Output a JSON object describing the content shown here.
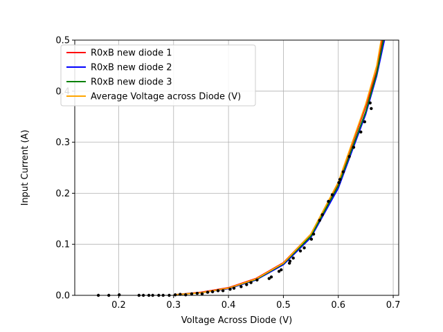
{
  "chart_data": {
    "type": "line",
    "title": "",
    "xlabel": "Voltage Across Diode (V)",
    "ylabel": "Input Current (A)",
    "xlim": [
      0.12,
      0.71
    ],
    "ylim": [
      0,
      0.5
    ],
    "xticks": [
      0.2,
      0.3,
      0.4,
      0.5,
      0.6,
      0.7
    ],
    "yticks": [
      0.0,
      0.1,
      0.2,
      0.3,
      0.4,
      0.5
    ],
    "grid": true,
    "legend_position": "top-left",
    "series": [
      {
        "name": "R0xB new diode 1",
        "color": "#ff0000",
        "x": [
          0.3,
          0.35,
          0.4,
          0.45,
          0.5,
          0.55,
          0.6,
          0.65,
          0.67,
          0.68
        ],
        "y": [
          0.001,
          0.006,
          0.015,
          0.033,
          0.064,
          0.12,
          0.22,
          0.37,
          0.44,
          0.5
        ]
      },
      {
        "name": "R0xB new diode 2",
        "color": "#0000ff",
        "x": [
          0.3,
          0.35,
          0.4,
          0.45,
          0.5,
          0.55,
          0.6,
          0.65,
          0.67,
          0.684
        ],
        "y": [
          0.001,
          0.005,
          0.013,
          0.03,
          0.06,
          0.113,
          0.21,
          0.355,
          0.43,
          0.5
        ]
      },
      {
        "name": "R0xB new diode 3",
        "color": "#008000",
        "x": [
          0.3,
          0.35,
          0.4,
          0.45,
          0.5,
          0.55,
          0.6,
          0.65,
          0.67,
          0.682
        ],
        "y": [
          0.001,
          0.005,
          0.014,
          0.031,
          0.062,
          0.116,
          0.215,
          0.36,
          0.435,
          0.5
        ]
      },
      {
        "name": "Average Voltage across Diode (V)",
        "color": "#ffa500",
        "x": [
          0.3,
          0.35,
          0.4,
          0.45,
          0.5,
          0.55,
          0.6,
          0.65,
          0.67,
          0.678
        ],
        "y": [
          0.001,
          0.005,
          0.014,
          0.032,
          0.063,
          0.12,
          0.222,
          0.375,
          0.45,
          0.5
        ]
      }
    ],
    "scatter": {
      "color": "#000000",
      "x": [
        0.163,
        0.182,
        0.201,
        0.237,
        0.245,
        0.255,
        0.262,
        0.273,
        0.281,
        0.292,
        0.303,
        0.312,
        0.322,
        0.333,
        0.343,
        0.352,
        0.362,
        0.371,
        0.381,
        0.39,
        0.403,
        0.41,
        0.423,
        0.433,
        0.441,
        0.452,
        0.474,
        0.478,
        0.492,
        0.496,
        0.511,
        0.512,
        0.518,
        0.531,
        0.538,
        0.551,
        0.555,
        0.566,
        0.571,
        0.582,
        0.589,
        0.601,
        0.603,
        0.609,
        0.62,
        0.628,
        0.641,
        0.648,
        0.658,
        0.66
      ],
      "y": [
        0.0,
        0.0,
        0.001,
        0.0,
        0.0,
        0.0,
        0.0,
        0.0,
        0.0,
        0.0,
        0.001,
        0.002,
        0.001,
        0.003,
        0.004,
        0.003,
        0.006,
        0.007,
        0.009,
        0.009,
        0.012,
        0.014,
        0.017,
        0.021,
        0.025,
        0.03,
        0.033,
        0.036,
        0.047,
        0.05,
        0.063,
        0.067,
        0.073,
        0.087,
        0.093,
        0.11,
        0.12,
        0.147,
        0.158,
        0.184,
        0.197,
        0.221,
        0.227,
        0.242,
        0.272,
        0.29,
        0.32,
        0.34,
        0.377,
        0.366
      ]
    }
  }
}
